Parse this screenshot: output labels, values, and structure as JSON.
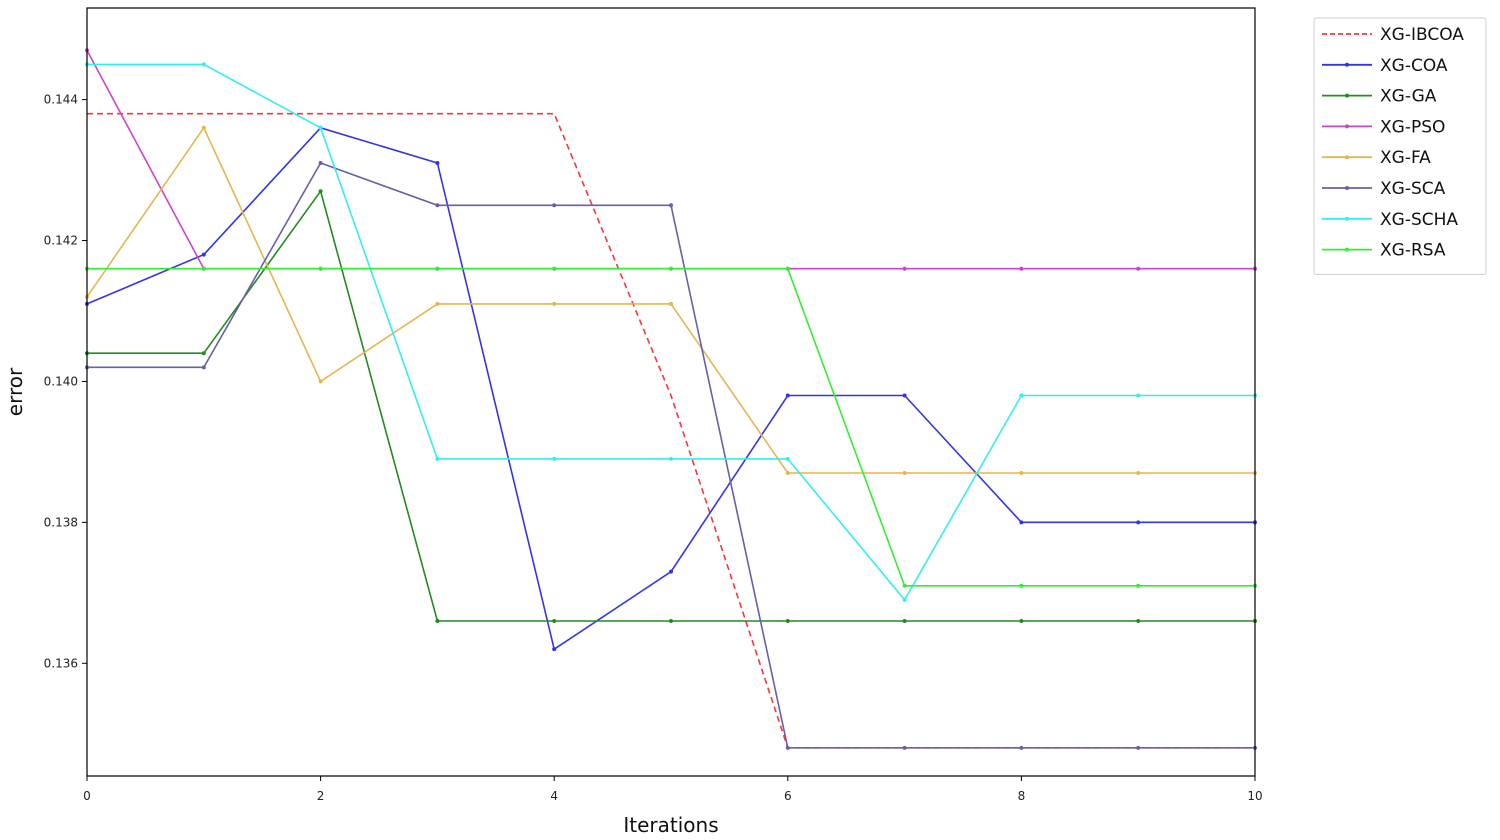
{
  "chart_data": {
    "type": "line",
    "title": "",
    "xlabel": "Iterations",
    "ylabel": "error",
    "xlim": [
      0,
      10
    ],
    "ylim": [
      0.1344,
      0.1453
    ],
    "x_ticks": [
      0,
      2,
      4,
      6,
      8,
      10
    ],
    "y_ticks": [
      0.136,
      0.138,
      0.14,
      0.142,
      0.144
    ],
    "y_tick_labels": [
      "0.136",
      "0.138",
      "0.140",
      "0.142",
      "0.144"
    ],
    "x_tick_labels": [
      "0",
      "2",
      "4",
      "6",
      "8",
      "10"
    ],
    "grid": false,
    "legend_position": "outside-top-right",
    "x": [
      0,
      1,
      2,
      3,
      4,
      5,
      6,
      7,
      8,
      9,
      10
    ],
    "series": [
      {
        "name": "XG-IBCOA",
        "color": "#ff3333",
        "dashed": true,
        "values": [
          0.1438,
          0.1438,
          0.1438,
          0.1438,
          0.1438,
          0.1398,
          0.1348,
          0.1348,
          0.1348,
          0.1348,
          0.1348
        ]
      },
      {
        "name": "XG-COA",
        "color": "#3333ee",
        "dashed": false,
        "values": [
          0.1411,
          0.1418,
          0.1436,
          0.1431,
          0.1362,
          0.1373,
          0.1398,
          0.1398,
          0.138,
          0.138,
          0.138
        ]
      },
      {
        "name": "XG-GA",
        "color": "#228b22",
        "dashed": false,
        "values": [
          0.1404,
          0.1404,
          0.1427,
          0.1366,
          0.1366,
          0.1366,
          0.1366,
          0.1366,
          0.1366,
          0.1366,
          0.1366
        ]
      },
      {
        "name": "XG-PSO",
        "color": "#cc44cc",
        "dashed": false,
        "values": [
          0.1447,
          0.1416,
          0.1416,
          0.1416,
          0.1416,
          0.1416,
          0.1416,
          0.1416,
          0.1416,
          0.1416,
          0.1416
        ]
      },
      {
        "name": "XG-FA",
        "color": "#e6b450",
        "dashed": false,
        "values": [
          0.1412,
          0.1436,
          0.14,
          0.1411,
          0.1411,
          0.1411,
          0.1387,
          0.1387,
          0.1387,
          0.1387,
          0.1387
        ]
      },
      {
        "name": "XG-SCA",
        "color": "#6a5fa8",
        "dashed": false,
        "values": [
          0.1402,
          0.1402,
          0.1431,
          0.1425,
          0.1425,
          0.1425,
          0.1348,
          0.1348,
          0.1348,
          0.1348,
          0.1348
        ]
      },
      {
        "name": "XG-SCHA",
        "color": "#33eeee",
        "dashed": false,
        "values": [
          0.1445,
          0.1445,
          0.1436,
          0.1389,
          0.1389,
          0.1389,
          0.1389,
          0.1369,
          0.1398,
          0.1398,
          0.1398
        ]
      },
      {
        "name": "XG-RSA",
        "color": "#33ee33",
        "dashed": false,
        "values": [
          0.1416,
          0.1416,
          0.1416,
          0.1416,
          0.1416,
          0.1416,
          0.1416,
          0.1371,
          0.1371,
          0.1371,
          0.1371
        ]
      }
    ]
  }
}
